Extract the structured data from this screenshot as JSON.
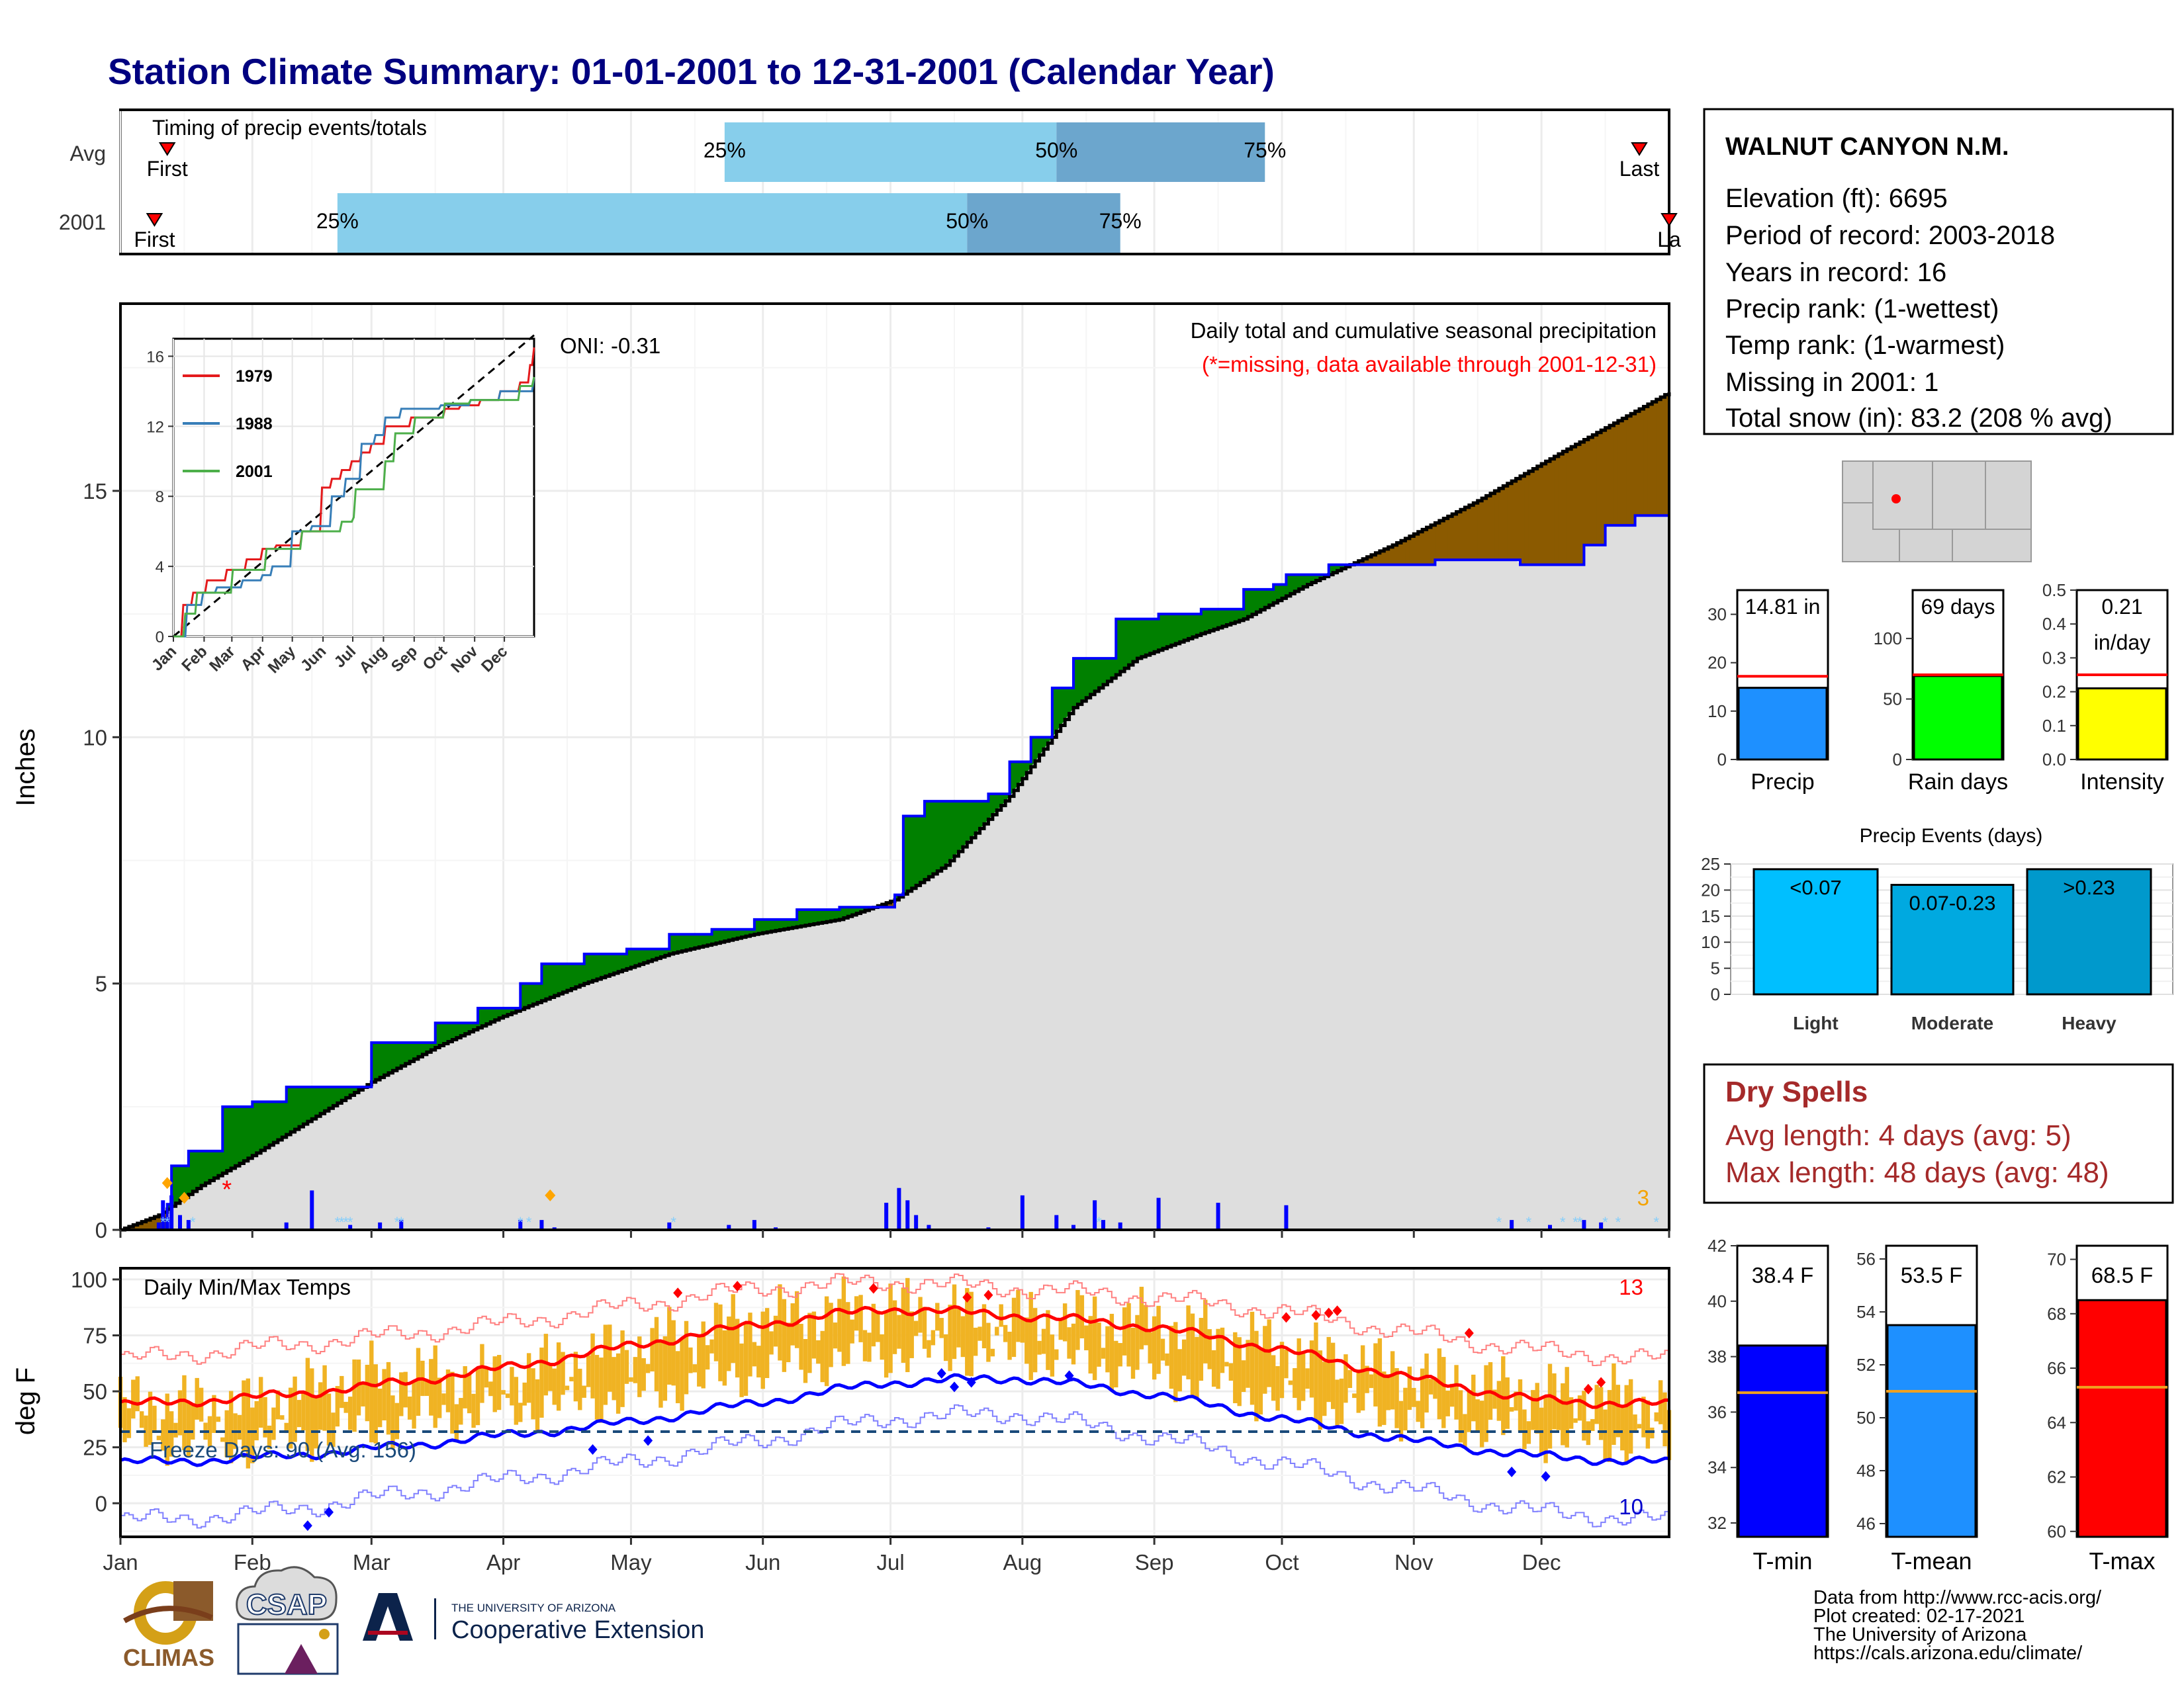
{
  "title": "Station Climate Summary: 01-01-2001 to 12-31-2001 (Calendar Year)",
  "station": {
    "name": "WALNUT CANYON N.M.",
    "lines": [
      "Elevation (ft): 6695",
      "Period of record: 2003-2018",
      "Years in record: 16",
      "Precip rank:  (1-wettest)",
      "Temp rank:  (1-warmest)",
      "Missing in 2001: 1",
      "Total snow (in): 83.2 (208 % avg)"
    ]
  },
  "months": [
    "Jan",
    "Feb",
    "Mar",
    "Apr",
    "May",
    "Jun",
    "Jul",
    "Aug",
    "Sep",
    "Oct",
    "Nov",
    "Dec"
  ],
  "timing": {
    "label": "Timing of precip events/totals",
    "rows": [
      "Avg",
      "2001"
    ],
    "avg": {
      "first": 12,
      "q25": 143,
      "q50": 221,
      "q75": 270,
      "last": 358
    },
    "y2001": {
      "first": 9,
      "q25": 52,
      "q50": 200,
      "q75": 236,
      "last": 365
    },
    "first_label": "First",
    "last_label": "Last",
    "last_label_clipped": "La",
    "p25": "25%",
    "p50": "50%",
    "p75": "75%"
  },
  "precip_panel": {
    "ylabel": "Inches",
    "caption": "Daily total and cumulative seasonal precipitation",
    "missing_note": "(*=missing, data available through 2001-12-31)",
    "oni": "ONI: -0.31",
    "snow_count": "3",
    "yticks": [
      0,
      5,
      10,
      15
    ],
    "ylim": [
      0,
      18.8
    ]
  },
  "temp_panel": {
    "ylabel": "deg F",
    "label": "Daily Min/Max Temps",
    "freeze": "Freeze Days: 90 (Avg: 156)",
    "freeze_line": 32,
    "record_high_count": "13",
    "record_low_count": "10",
    "yticks": [
      0,
      25,
      50,
      75,
      100
    ],
    "ylim": [
      -15,
      105
    ]
  },
  "chart_data": [
    {
      "type": "area",
      "name": "cumulative precipitation",
      "x_unit": "day of year",
      "series": [
        {
          "name": "2001",
          "x": [
            1,
            12,
            13,
            17,
            25,
            32,
            40,
            60,
            75,
            85,
            95,
            100,
            110,
            120,
            130,
            140,
            150,
            160,
            170,
            183,
            185,
            190,
            205,
            210,
            215,
            220,
            225,
            235,
            245,
            255,
            262,
            265,
            272,
            275,
            280,
            285,
            295,
            300,
            310,
            320,
            330,
            345,
            350,
            357,
            365
          ],
          "y": [
            0,
            0.52,
            1.3,
            1.6,
            2.5,
            2.6,
            2.9,
            3.8,
            4.2,
            4.5,
            5.0,
            5.4,
            5.6,
            5.7,
            6.0,
            6.1,
            6.3,
            6.5,
            6.55,
            6.8,
            8.4,
            8.7,
            8.85,
            9.5,
            10.0,
            11.0,
            11.6,
            12.4,
            12.5,
            12.6,
            12.6,
            13.0,
            13.1,
            13.3,
            13.3,
            13.5,
            13.5,
            13.5,
            13.6,
            13.6,
            13.5,
            13.9,
            14.3,
            14.5,
            14.81
          ]
        },
        {
          "name": "Avg",
          "x": [
            1,
            10,
            20,
            30,
            45,
            60,
            75,
            90,
            110,
            130,
            150,
            170,
            183,
            195,
            210,
            225,
            240,
            255,
            265,
            280,
            300,
            320,
            340,
            365
          ],
          "y": [
            0,
            0.3,
            0.9,
            1.4,
            2.2,
            3.0,
            3.7,
            4.3,
            5.0,
            5.6,
            6.0,
            6.3,
            6.7,
            7.4,
            8.8,
            10.6,
            11.6,
            12.1,
            12.4,
            13.1,
            13.9,
            14.8,
            15.8,
            17.0
          ]
        }
      ],
      "daily_precip": [
        {
          "day": 10,
          "in": 0.15
        },
        {
          "day": 11,
          "in": 0.6
        },
        {
          "day": 12,
          "in": 0.25
        },
        {
          "day": 13,
          "in": 0.7
        },
        {
          "day": 15,
          "in": 0.3
        },
        {
          "day": 17,
          "in": 0.2
        },
        {
          "day": 40,
          "in": 0.15
        },
        {
          "day": 46,
          "in": 0.8
        },
        {
          "day": 55,
          "in": 0.1
        },
        {
          "day": 62,
          "in": 0.15
        },
        {
          "day": 67,
          "in": 0.2
        },
        {
          "day": 95,
          "in": 0.2
        },
        {
          "day": 100,
          "in": 0.2
        },
        {
          "day": 103,
          "in": 0.05
        },
        {
          "day": 130,
          "in": 0.15
        },
        {
          "day": 144,
          "in": 0.1
        },
        {
          "day": 150,
          "in": 0.2
        },
        {
          "day": 155,
          "in": 0.05
        },
        {
          "day": 181,
          "in": 0.55
        },
        {
          "day": 184,
          "in": 0.85
        },
        {
          "day": 186,
          "in": 0.6
        },
        {
          "day": 188,
          "in": 0.3
        },
        {
          "day": 191,
          "in": 0.1
        },
        {
          "day": 205,
          "in": 0.05
        },
        {
          "day": 213,
          "in": 0.7
        },
        {
          "day": 221,
          "in": 0.3
        },
        {
          "day": 225,
          "in": 0.1
        },
        {
          "day": 230,
          "in": 0.6
        },
        {
          "day": 232,
          "in": 0.2
        },
        {
          "day": 236,
          "in": 0.15
        },
        {
          "day": 245,
          "in": 0.65
        },
        {
          "day": 259,
          "in": 0.55
        },
        {
          "day": 275,
          "in": 0.5
        },
        {
          "day": 328,
          "in": 0.2
        },
        {
          "day": 337,
          "in": 0.1
        },
        {
          "day": 345,
          "in": 0.2
        },
        {
          "day": 349,
          "in": 0.15
        }
      ],
      "missing_day": 26,
      "record_days": [
        {
          "day": 12,
          "y": 0.95
        },
        {
          "day": 16,
          "y": 0.65
        },
        {
          "day": 102,
          "y": 0.7
        }
      ]
    },
    {
      "type": "line",
      "name": "inset",
      "categories": [
        "Jan",
        "Feb",
        "Mar",
        "Apr",
        "May",
        "Jun",
        "Jul",
        "Aug",
        "Sep",
        "Oct",
        "Nov",
        "Dec"
      ],
      "ylim": [
        0,
        17
      ],
      "yticks": [
        0,
        4,
        8,
        12,
        16
      ],
      "series": [
        {
          "name": "1979",
          "color": "#e41a1c",
          "x": [
            1,
            10,
            20,
            35,
            55,
            75,
            90,
            105,
            130,
            150,
            160,
            170,
            180,
            190,
            200,
            215,
            240,
            255,
            275,
            290,
            310,
            330,
            350,
            360,
            365
          ],
          "y": [
            0,
            1.8,
            2.5,
            3.2,
            3.8,
            4.4,
            5.0,
            5.2,
            6.0,
            8.5,
            9.0,
            9.5,
            10.0,
            10.5,
            11.0,
            12.0,
            12.5,
            12.5,
            13.0,
            13.2,
            13.5,
            14.0,
            14.5,
            15.5,
            16.5
          ]
        },
        {
          "name": "1988",
          "color": "#377eb8",
          "x": [
            1,
            15,
            30,
            45,
            70,
            90,
            100,
            120,
            140,
            160,
            175,
            190,
            205,
            215,
            230,
            245,
            270,
            300,
            330,
            365
          ],
          "y": [
            0,
            1.8,
            2.5,
            2.8,
            3.2,
            3.5,
            4.0,
            6.0,
            6.3,
            8.0,
            9.0,
            11.0,
            11.5,
            12.5,
            13.0,
            13.0,
            13.2,
            13.5,
            14.0,
            14.8
          ]
        },
        {
          "name": "2001",
          "color": "#4daf4a",
          "x": [
            1,
            12,
            13,
            25,
            60,
            95,
            130,
            170,
            183,
            185,
            215,
            225,
            245,
            275,
            300,
            330,
            350,
            365
          ],
          "y": [
            0,
            0.52,
            1.3,
            2.5,
            3.8,
            5.0,
            6.0,
            6.55,
            6.8,
            8.4,
            10.0,
            11.6,
            12.5,
            13.3,
            13.5,
            13.5,
            14.3,
            14.81
          ]
        }
      ]
    },
    {
      "type": "line",
      "name": "temperatures",
      "series": [
        {
          "name": "Avg max",
          "color": "#ff0000",
          "x": [
            1,
            31,
            59,
            90,
            120,
            151,
            181,
            212,
            243,
            273,
            304,
            334,
            365
          ],
          "y": [
            44,
            47,
            52,
            60,
            70,
            80,
            87,
            84,
            79,
            69,
            56,
            46,
            44
          ]
        },
        {
          "name": "Avg min",
          "color": "#0000ff",
          "x": [
            1,
            31,
            59,
            90,
            120,
            151,
            181,
            212,
            243,
            273,
            304,
            334,
            365
          ],
          "y": [
            18,
            20,
            24,
            30,
            36,
            45,
            54,
            56,
            49,
            38,
            28,
            21,
            18
          ]
        },
        {
          "name": "Record max",
          "color": "#ff8080",
          "x": [
            1,
            31,
            59,
            90,
            120,
            151,
            181,
            212,
            243,
            273,
            304,
            334,
            365
          ],
          "y": [
            64,
            69,
            74,
            80,
            88,
            96,
            99,
            96,
            92,
            86,
            76,
            68,
            64
          ]
        },
        {
          "name": "Record min",
          "color": "#8080ff",
          "x": [
            1,
            31,
            59,
            90,
            120,
            151,
            181,
            212,
            243,
            273,
            304,
            334,
            365
          ],
          "y": [
            -8,
            -5,
            2,
            10,
            18,
            28,
            38,
            40,
            30,
            18,
            6,
            -4,
            -8
          ]
        },
        {
          "name": "2001 max",
          "x": [
            1,
            31,
            59,
            90,
            120,
            151,
            181,
            212,
            243,
            273,
            304,
            334,
            365
          ],
          "y": [
            45,
            44,
            58,
            57,
            70,
            83,
            88,
            83,
            82,
            70,
            58,
            50,
            46
          ]
        },
        {
          "name": "2001 min",
          "x": [
            1,
            31,
            59,
            90,
            120,
            151,
            181,
            212,
            243,
            273,
            304,
            334,
            365
          ],
          "y": [
            18,
            14,
            22,
            30,
            36,
            47,
            55,
            55,
            47,
            34,
            27,
            18,
            14
          ]
        }
      ]
    },
    {
      "type": "bar",
      "name": "annual",
      "bars": [
        {
          "label": "Precip",
          "value": 14.81,
          "avg": 17.2,
          "text": "14.81 in",
          "ylim": [
            0,
            35
          ],
          "yticks": [
            0,
            10,
            20,
            30
          ],
          "color": "#1e90ff"
        },
        {
          "label": "Rain days",
          "value": 69,
          "avg": 70,
          "text": "69 days",
          "ylim": [
            0,
            140
          ],
          "yticks": [
            0,
            50,
            100
          ],
          "color": "#00ff00"
        },
        {
          "label": "Intensity",
          "value": 0.21,
          "avg": 0.25,
          "text": "0.21",
          "text2": "in/day",
          "ylim": [
            0,
            0.5
          ],
          "yticks": [
            "0.0",
            "0.1",
            "0.2",
            "0.3",
            "0.4",
            "0.5"
          ],
          "color": "#ffff00"
        }
      ]
    },
    {
      "type": "bar",
      "title": "Precip Events (days)",
      "categories": [
        "Light",
        "Moderate",
        "Heavy"
      ],
      "labels": [
        "<0.07",
        "0.07-0.23",
        ">0.23"
      ],
      "values": [
        24,
        21,
        24
      ],
      "colors": [
        "#00bfff",
        "#00a9e0",
        "#0099cc"
      ],
      "ylim": [
        0,
        25
      ],
      "yticks": [
        0,
        5,
        10,
        15,
        20,
        25
      ]
    },
    {
      "type": "bar",
      "name": "annual temperature",
      "bars": [
        {
          "label": "T-min",
          "value": 38.4,
          "avg": 36.7,
          "text": "38.4 F",
          "ylim": [
            31.5,
            42
          ],
          "yticks": [
            32,
            34,
            36,
            38,
            40,
            42
          ],
          "color": "#0000ff"
        },
        {
          "label": "T-mean",
          "value": 53.5,
          "avg": 51.0,
          "text": "53.5 F",
          "ylim": [
            45.5,
            56.5
          ],
          "yticks": [
            46,
            48,
            50,
            52,
            54,
            56
          ],
          "color": "#1e90ff"
        },
        {
          "label": "T-max",
          "value": 68.5,
          "avg": 65.3,
          "text": "68.5 F",
          "ylim": [
            59.8,
            70.5
          ],
          "yticks": [
            60,
            62,
            64,
            66,
            68,
            70
          ],
          "color": "#ff0000"
        }
      ]
    }
  ],
  "dry_spells": {
    "title": "Dry Spells",
    "avg_length": "Avg length: 4 days (avg: 5)",
    "max_length": "Max length: 48 days (avg: 48)"
  },
  "credits": [
    "Data from http://www.rcc-acis.org/",
    "Plot created: 02-17-2021",
    "The University of Arizona",
    "https://cals.arizona.edu/climate/"
  ],
  "logos": {
    "climas": "CLIMAS",
    "csap": "CSAP",
    "ua_small": "THE UNIVERSITY OF ARIZONA",
    "ua_big": "Cooperative Extension"
  }
}
